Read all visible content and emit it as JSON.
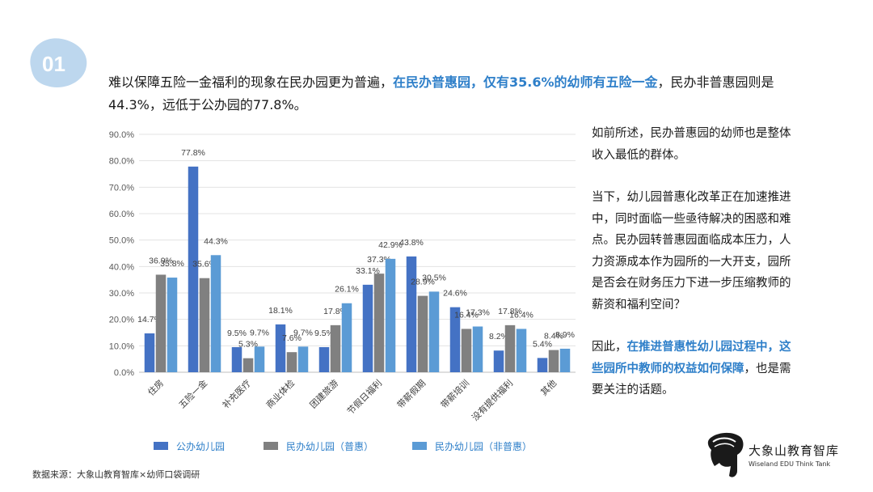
{
  "badge": {
    "number": "01"
  },
  "headline": {
    "part1": "难以保障五险一金福利的现象在民办园更为普遍，",
    "highlight": "在民办普惠园，仅有35.6%的幼师有五险一金",
    "part2": "，民办非普惠园则是44.3%，远低于公办园的77.8%。"
  },
  "side_text": {
    "p1": "如前所述，民办普惠园的幼师也是整体收入最低的群体。",
    "p2": "当下，幼儿园普惠化改革正在加速推进中，同时面临一些亟待解决的困惑和难点。民办园转普惠园面临成本压力，人力资源成本作为园所的一大开支，园所是否会在财务压力下进一步压缩教师的薪资和福利空间？",
    "p3_prefix": "因此，",
    "p3_highlight": "在推进普惠性幼儿园过程中，这些园所中教师的权益如何保障",
    "p3_suffix": "，也是需要关注的话题。"
  },
  "source": "数据来源：大象山教育智库×幼师口袋调研",
  "logo": {
    "name_cn": "大象山教育智库",
    "name_en": "Wiseland EDU Think Tank"
  },
  "colors": {
    "series1": "#4472c4",
    "series2": "#808080",
    "series3": "#5b9bd5",
    "accent": "#2e7fc9",
    "badge": "#bdd7ee"
  },
  "chart_data": {
    "type": "bar",
    "categories": [
      "住房",
      "五险一金",
      "补充医疗",
      "商业体检",
      "团建旅游",
      "节假日福利",
      "带薪假期",
      "带薪培训",
      "没有提供福利",
      "其他"
    ],
    "series": [
      {
        "name": "公办幼儿园",
        "values": [
          14.7,
          77.8,
          9.5,
          18.1,
          9.5,
          33.1,
          43.8,
          24.6,
          8.2,
          5.4
        ]
      },
      {
        "name": "民办幼儿园（普惠）",
        "values": [
          36.9,
          35.6,
          5.3,
          7.6,
          17.8,
          37.3,
          28.9,
          16.4,
          17.8,
          8.4
        ]
      },
      {
        "name": "民办幼儿园（非普惠）",
        "values": [
          35.8,
          44.3,
          9.7,
          9.7,
          26.1,
          42.9,
          30.5,
          17.3,
          16.4,
          8.9
        ]
      }
    ],
    "yticks": [
      "0.0%",
      "10.0%",
      "20.0%",
      "30.0%",
      "40.0%",
      "50.0%",
      "60.0%",
      "70.0%",
      "80.0%",
      "90.0%"
    ],
    "ylim": [
      0,
      90
    ],
    "unit": "%",
    "legend_position": "bottom",
    "grid": true
  }
}
